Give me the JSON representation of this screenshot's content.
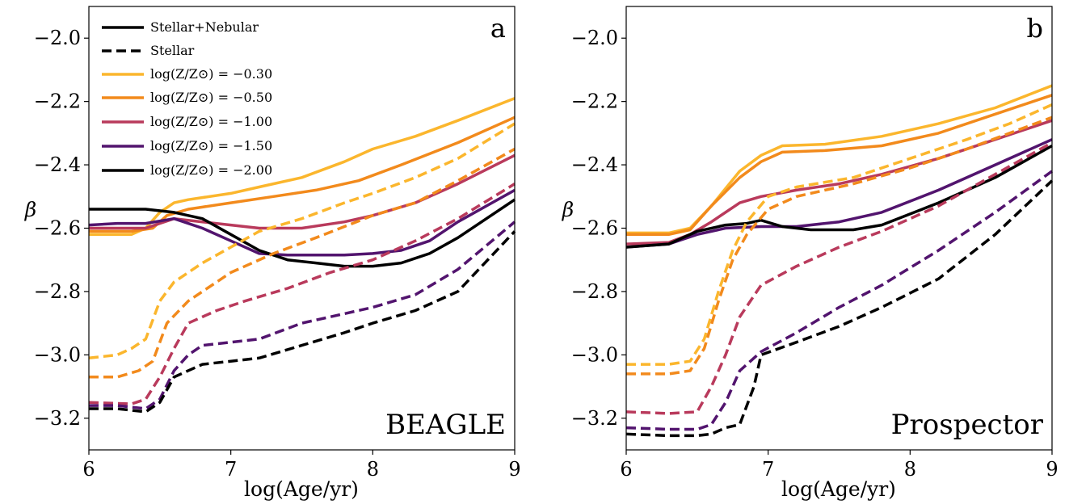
{
  "figure": {
    "legend": [
      {
        "label": "Stellar+Nebular",
        "color": "#000000",
        "dash": false
      },
      {
        "label": "Stellar",
        "color": "#000000",
        "dash": true
      },
      {
        "label": "log(Z/Z⊙) = −0.30",
        "color": "#fbb62d",
        "dash": false
      },
      {
        "label": "log(Z/Z⊙) = −0.50",
        "color": "#f28a1c",
        "dash": false
      },
      {
        "label": "log(Z/Z⊙) = −1.00",
        "color": "#b93a5c",
        "dash": false
      },
      {
        "label": "log(Z/Z⊙) = −1.50",
        "color": "#52146e",
        "dash": false
      },
      {
        "label": "log(Z/Z⊙) = −2.00",
        "color": "#000000",
        "dash": false
      }
    ]
  },
  "chart_data": [
    {
      "type": "line",
      "panel_letter": "a",
      "panel_name": "BEAGLE",
      "xlabel": "log(Age/yr)",
      "ylabel": "β",
      "xlim": [
        6,
        9
      ],
      "ylim": [
        -3.3,
        -1.9
      ],
      "xticks": [
        6,
        7,
        8,
        9
      ],
      "xtick_labels": [
        "6",
        "7",
        "8",
        "9"
      ],
      "yticks": [
        -3.2,
        -3.0,
        -2.8,
        -2.6,
        -2.4,
        -2.2,
        -2.0
      ],
      "ytick_labels": [
        "−3.2",
        "−3.0",
        "−2.8",
        "−2.6",
        "−2.4",
        "−2.2",
        "−2.0"
      ],
      "grid": false,
      "legend_position": "top-left",
      "series": [
        {
          "metallicity": "-0.30",
          "kind": "Stellar+Nebular",
          "color": "#fbb62d",
          "dash": false,
          "x": [
            6.0,
            6.3,
            6.4,
            6.5,
            6.6,
            6.7,
            7.0,
            7.2,
            7.5,
            7.8,
            8.0,
            8.3,
            8.6,
            9.0
          ],
          "y": [
            -2.62,
            -2.62,
            -2.6,
            -2.55,
            -2.52,
            -2.51,
            -2.49,
            -2.47,
            -2.44,
            -2.39,
            -2.35,
            -2.31,
            -2.26,
            -2.19
          ]
        },
        {
          "metallicity": "-0.50",
          "kind": "Stellar+Nebular",
          "color": "#f28a1c",
          "dash": false,
          "x": [
            6.0,
            6.3,
            6.45,
            6.55,
            6.7,
            7.0,
            7.3,
            7.6,
            7.9,
            8.2,
            8.6,
            9.0
          ],
          "y": [
            -2.61,
            -2.61,
            -2.6,
            -2.56,
            -2.54,
            -2.52,
            -2.5,
            -2.48,
            -2.45,
            -2.4,
            -2.33,
            -2.25
          ]
        },
        {
          "metallicity": "-1.00",
          "kind": "Stellar+Nebular",
          "color": "#b93a5c",
          "dash": false,
          "x": [
            6.0,
            6.4,
            6.6,
            6.8,
            7.0,
            7.2,
            7.5,
            7.8,
            8.0,
            8.3,
            8.6,
            9.0
          ],
          "y": [
            -2.6,
            -2.6,
            -2.57,
            -2.58,
            -2.59,
            -2.6,
            -2.6,
            -2.58,
            -2.56,
            -2.52,
            -2.46,
            -2.37
          ]
        },
        {
          "metallicity": "-1.50",
          "kind": "Stellar+Nebular",
          "color": "#52146e",
          "dash": false,
          "x": [
            6.0,
            6.2,
            6.4,
            6.6,
            6.8,
            7.0,
            7.2,
            7.4,
            7.8,
            8.0,
            8.2,
            8.4,
            8.6,
            9.0
          ],
          "y": [
            -2.59,
            -2.585,
            -2.585,
            -2.57,
            -2.6,
            -2.64,
            -2.68,
            -2.685,
            -2.685,
            -2.68,
            -2.67,
            -2.64,
            -2.58,
            -2.48
          ]
        },
        {
          "metallicity": "-2.00",
          "kind": "Stellar+Nebular",
          "color": "#000000",
          "dash": false,
          "x": [
            6.0,
            6.2,
            6.4,
            6.6,
            6.8,
            7.0,
            7.2,
            7.4,
            7.6,
            7.8,
            8.0,
            8.2,
            8.4,
            8.6,
            9.0
          ],
          "y": [
            -2.54,
            -2.54,
            -2.54,
            -2.55,
            -2.57,
            -2.62,
            -2.67,
            -2.7,
            -2.71,
            -2.72,
            -2.72,
            -2.71,
            -2.68,
            -2.63,
            -2.51
          ]
        },
        {
          "metallicity": "-0.30",
          "kind": "Stellar",
          "color": "#fbb62d",
          "dash": true,
          "x": [
            6.0,
            6.2,
            6.3,
            6.4,
            6.5,
            6.6,
            6.8,
            7.0,
            7.2,
            7.5,
            7.8,
            8.0,
            8.3,
            8.6,
            9.0
          ],
          "y": [
            -3.01,
            -3.0,
            -2.98,
            -2.95,
            -2.83,
            -2.77,
            -2.71,
            -2.66,
            -2.61,
            -2.57,
            -2.52,
            -2.49,
            -2.44,
            -2.38,
            -2.27
          ]
        },
        {
          "metallicity": "-0.50",
          "kind": "Stellar",
          "color": "#f28a1c",
          "dash": true,
          "x": [
            6.0,
            6.2,
            6.35,
            6.45,
            6.55,
            6.7,
            7.0,
            7.3,
            7.6,
            8.0,
            8.3,
            8.6,
            9.0
          ],
          "y": [
            -3.07,
            -3.07,
            -3.05,
            -3.02,
            -2.9,
            -2.83,
            -2.74,
            -2.68,
            -2.63,
            -2.56,
            -2.52,
            -2.45,
            -2.35
          ]
        },
        {
          "metallicity": "-1.00",
          "kind": "Stellar",
          "color": "#b93a5c",
          "dash": true,
          "x": [
            6.0,
            6.3,
            6.4,
            6.5,
            6.6,
            6.7,
            6.9,
            7.1,
            7.4,
            7.7,
            8.0,
            8.3,
            8.6,
            9.0
          ],
          "y": [
            -3.15,
            -3.155,
            -3.14,
            -3.07,
            -2.98,
            -2.9,
            -2.86,
            -2.83,
            -2.79,
            -2.74,
            -2.7,
            -2.64,
            -2.57,
            -2.46
          ]
        },
        {
          "metallicity": "-1.50",
          "kind": "Stellar",
          "color": "#52146e",
          "dash": true,
          "x": [
            6.0,
            6.2,
            6.4,
            6.5,
            6.6,
            6.7,
            6.8,
            7.0,
            7.2,
            7.5,
            7.8,
            8.0,
            8.3,
            8.6,
            9.0
          ],
          "y": [
            -3.16,
            -3.16,
            -3.17,
            -3.14,
            -3.05,
            -3.0,
            -2.97,
            -2.96,
            -2.95,
            -2.9,
            -2.87,
            -2.85,
            -2.81,
            -2.73,
            -2.58
          ]
        },
        {
          "metallicity": "-2.00",
          "kind": "Stellar",
          "color": "#000000",
          "dash": true,
          "x": [
            6.0,
            6.2,
            6.4,
            6.5,
            6.6,
            6.8,
            7.0,
            7.2,
            7.5,
            7.8,
            8.0,
            8.3,
            8.6,
            9.0
          ],
          "y": [
            -3.17,
            -3.17,
            -3.18,
            -3.15,
            -3.07,
            -3.03,
            -3.02,
            -3.01,
            -2.97,
            -2.93,
            -2.9,
            -2.86,
            -2.8,
            -2.61
          ]
        }
      ]
    },
    {
      "type": "line",
      "panel_letter": "b",
      "panel_name": "Prospector",
      "xlabel": "log(Age/yr)",
      "ylabel": "β",
      "xlim": [
        6,
        9
      ],
      "ylim": [
        -3.3,
        -1.9
      ],
      "xticks": [
        6,
        7,
        8,
        9
      ],
      "xtick_labels": [
        "6",
        "7",
        "8",
        "9"
      ],
      "yticks": [
        -3.2,
        -3.0,
        -2.8,
        -2.6,
        -2.4,
        -2.2,
        -2.0
      ],
      "ytick_labels": [
        "−3.2",
        "−3.0",
        "−2.8",
        "−2.6",
        "−2.4",
        "−2.2",
        "−2.0"
      ],
      "grid": false,
      "series": [
        {
          "metallicity": "-0.30",
          "kind": "Stellar+Nebular",
          "color": "#fbb62d",
          "dash": false,
          "x": [
            6.0,
            6.3,
            6.45,
            6.6,
            6.8,
            6.95,
            7.1,
            7.4,
            7.8,
            8.2,
            8.6,
            9.0
          ],
          "y": [
            -2.615,
            -2.615,
            -2.6,
            -2.53,
            -2.42,
            -2.37,
            -2.34,
            -2.335,
            -2.31,
            -2.27,
            -2.22,
            -2.15
          ]
        },
        {
          "metallicity": "-0.50",
          "kind": "Stellar+Nebular",
          "color": "#f28a1c",
          "dash": false,
          "x": [
            6.0,
            6.3,
            6.45,
            6.6,
            6.8,
            6.95,
            7.1,
            7.4,
            7.8,
            8.2,
            8.6,
            9.0
          ],
          "y": [
            -2.62,
            -2.62,
            -2.605,
            -2.53,
            -2.44,
            -2.39,
            -2.36,
            -2.355,
            -2.34,
            -2.3,
            -2.24,
            -2.18
          ]
        },
        {
          "metallicity": "-1.00",
          "kind": "Stellar+Nebular",
          "color": "#b93a5c",
          "dash": false,
          "x": [
            6.0,
            6.3,
            6.45,
            6.6,
            6.8,
            6.95,
            7.2,
            7.5,
            7.8,
            8.2,
            8.6,
            9.0
          ],
          "y": [
            -2.65,
            -2.645,
            -2.62,
            -2.58,
            -2.52,
            -2.5,
            -2.48,
            -2.46,
            -2.43,
            -2.38,
            -2.32,
            -2.26
          ]
        },
        {
          "metallicity": "-1.50",
          "kind": "Stellar+Nebular",
          "color": "#52146e",
          "dash": false,
          "x": [
            6.0,
            6.3,
            6.5,
            6.7,
            6.95,
            7.2,
            7.5,
            7.8,
            8.2,
            8.6,
            9.0
          ],
          "y": [
            -2.66,
            -2.65,
            -2.62,
            -2.6,
            -2.595,
            -2.595,
            -2.58,
            -2.55,
            -2.48,
            -2.4,
            -2.32
          ]
        },
        {
          "metallicity": "-2.00",
          "kind": "Stellar+Nebular",
          "color": "#000000",
          "dash": false,
          "x": [
            6.0,
            6.3,
            6.5,
            6.7,
            6.85,
            6.95,
            7.1,
            7.3,
            7.6,
            7.8,
            8.2,
            8.6,
            9.0
          ],
          "y": [
            -2.66,
            -2.65,
            -2.61,
            -2.59,
            -2.585,
            -2.575,
            -2.595,
            -2.605,
            -2.605,
            -2.59,
            -2.52,
            -2.44,
            -2.34
          ]
        },
        {
          "metallicity": "-0.30",
          "kind": "Stellar",
          "color": "#fbb62d",
          "dash": true,
          "x": [
            6.0,
            6.3,
            6.45,
            6.55,
            6.65,
            6.75,
            6.85,
            7.0,
            7.2,
            7.6,
            8.0,
            8.4,
            8.7,
            9.0
          ],
          "y": [
            -3.03,
            -3.03,
            -3.02,
            -2.95,
            -2.8,
            -2.67,
            -2.58,
            -2.5,
            -2.47,
            -2.44,
            -2.38,
            -2.32,
            -2.27,
            -2.21
          ]
        },
        {
          "metallicity": "-0.50",
          "kind": "Stellar",
          "color": "#f28a1c",
          "dash": true,
          "x": [
            6.0,
            6.3,
            6.45,
            6.55,
            6.65,
            6.75,
            6.85,
            7.0,
            7.2,
            7.6,
            8.0,
            8.4,
            8.7,
            9.0
          ],
          "y": [
            -3.06,
            -3.06,
            -3.05,
            -2.98,
            -2.83,
            -2.7,
            -2.62,
            -2.54,
            -2.5,
            -2.46,
            -2.41,
            -2.35,
            -2.3,
            -2.25
          ]
        },
        {
          "metallicity": "-1.00",
          "kind": "Stellar",
          "color": "#b93a5c",
          "dash": true,
          "x": [
            6.0,
            6.3,
            6.5,
            6.6,
            6.7,
            6.8,
            6.95,
            7.2,
            7.5,
            7.8,
            8.2,
            8.6,
            9.0
          ],
          "y": [
            -3.18,
            -3.185,
            -3.18,
            -3.1,
            -3.0,
            -2.88,
            -2.78,
            -2.72,
            -2.66,
            -2.61,
            -2.53,
            -2.43,
            -2.33
          ]
        },
        {
          "metallicity": "-1.50",
          "kind": "Stellar",
          "color": "#52146e",
          "dash": true,
          "x": [
            6.0,
            6.3,
            6.5,
            6.6,
            6.7,
            6.8,
            6.95,
            7.2,
            7.5,
            7.8,
            8.2,
            8.6,
            9.0
          ],
          "y": [
            -3.23,
            -3.235,
            -3.235,
            -3.22,
            -3.15,
            -3.05,
            -2.99,
            -2.93,
            -2.85,
            -2.78,
            -2.67,
            -2.55,
            -2.42
          ]
        },
        {
          "metallicity": "-2.00",
          "kind": "Stellar",
          "color": "#000000",
          "dash": true,
          "x": [
            6.0,
            6.3,
            6.5,
            6.6,
            6.7,
            6.8,
            6.9,
            6.95,
            7.2,
            7.5,
            7.8,
            8.2,
            8.6,
            9.0
          ],
          "y": [
            -3.25,
            -3.255,
            -3.255,
            -3.25,
            -3.23,
            -3.22,
            -3.1,
            -3.0,
            -2.96,
            -2.91,
            -2.85,
            -2.76,
            -2.62,
            -2.45
          ]
        }
      ]
    }
  ]
}
